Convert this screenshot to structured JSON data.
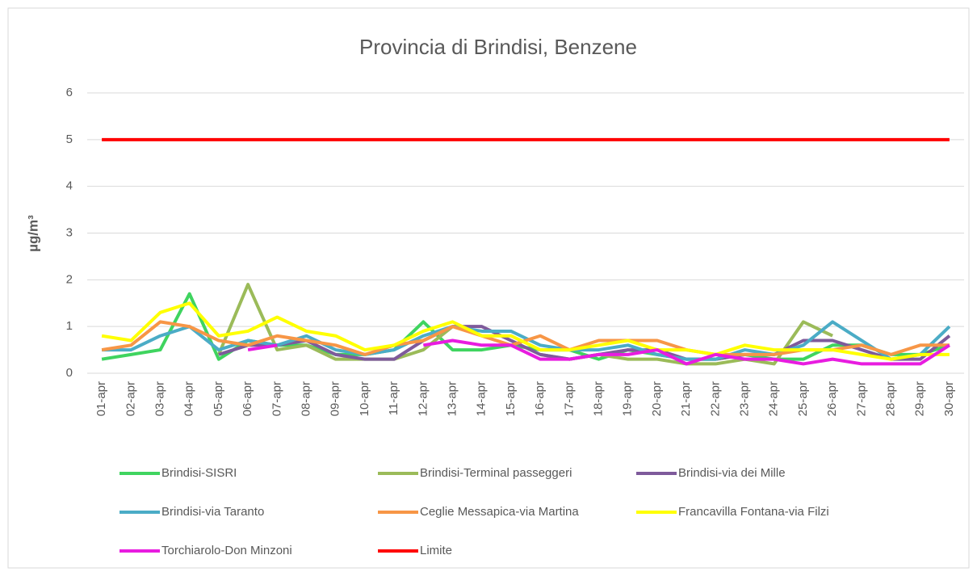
{
  "chart_data": {
    "type": "line",
    "title": "Provincia di Brindisi, Benzene",
    "y_label": "µg/m³",
    "categories": [
      "01-apr",
      "02-apr",
      "03-apr",
      "04-apr",
      "05-apr",
      "06-apr",
      "07-apr",
      "08-apr",
      "09-apr",
      "10-apr",
      "11-apr",
      "12-apr",
      "13-apr",
      "14-apr",
      "15-apr",
      "16-apr",
      "17-apr",
      "18-apr",
      "19-apr",
      "20-apr",
      "21-apr",
      "22-apr",
      "23-apr",
      "24-apr",
      "25-apr",
      "26-apr",
      "27-apr",
      "28-apr",
      "29-apr",
      "30-apr"
    ],
    "series": [
      {
        "name": "Brindisi-SISRI",
        "color": "#3fd45f",
        "values": [
          0.3,
          0.4,
          0.5,
          1.7,
          0.3,
          0.7,
          0.6,
          0.6,
          0.4,
          0.4,
          0.5,
          1.1,
          0.5,
          0.5,
          0.6,
          0.5,
          0.5,
          0.3,
          0.5,
          0.4,
          0.3,
          0.3,
          0.4,
          0.3,
          0.3,
          0.6,
          0.6,
          0.4,
          0.4,
          0.6
        ]
      },
      {
        "name": "Brindisi-Terminal passeggeri",
        "color": "#9bbb59",
        "values": [
          null,
          null,
          null,
          null,
          0.4,
          1.9,
          0.5,
          0.6,
          0.3,
          0.3,
          0.3,
          0.5,
          1.0,
          null,
          null,
          0.4,
          0.3,
          0.4,
          0.3,
          0.3,
          0.2,
          0.2,
          0.3,
          0.2,
          1.1,
          0.8,
          null,
          null,
          null,
          null
        ]
      },
      {
        "name": "Brindisi-via dei Mille",
        "color": "#7e5a9b",
        "values": [
          null,
          null,
          null,
          null,
          0.4,
          0.6,
          0.6,
          0.7,
          0.4,
          0.3,
          0.3,
          0.7,
          1.0,
          1.0,
          0.7,
          0.4,
          0.3,
          0.4,
          0.5,
          0.5,
          0.3,
          0.3,
          0.4,
          0.4,
          0.7,
          0.7,
          0.5,
          0.3,
          0.3,
          0.8
        ]
      },
      {
        "name": "Brindisi-via Taranto",
        "color": "#4bacc6",
        "values": [
          0.5,
          0.5,
          0.8,
          1.0,
          0.5,
          0.7,
          0.6,
          0.8,
          0.5,
          0.4,
          0.5,
          0.8,
          1.0,
          0.9,
          0.9,
          0.6,
          0.5,
          0.5,
          0.6,
          0.4,
          0.3,
          0.3,
          0.5,
          0.4,
          0.6,
          1.1,
          0.7,
          0.3,
          0.4,
          1.0
        ]
      },
      {
        "name": "Ceglie Messapica-via Martina",
        "color": "#f79646",
        "values": [
          0.5,
          0.6,
          1.1,
          1.0,
          0.7,
          0.6,
          0.8,
          0.7,
          0.6,
          0.4,
          0.6,
          0.7,
          1.0,
          0.8,
          0.6,
          0.8,
          0.5,
          0.7,
          0.7,
          0.7,
          0.5,
          0.4,
          0.4,
          0.4,
          0.5,
          0.5,
          0.6,
          0.4,
          0.6,
          0.6
        ]
      },
      {
        "name": "Francavilla Fontana-via Filzi",
        "color": "#ffff00",
        "values": [
          0.8,
          0.7,
          1.3,
          1.5,
          0.8,
          0.9,
          1.2,
          0.9,
          0.8,
          0.5,
          0.6,
          0.9,
          1.1,
          0.8,
          0.8,
          0.5,
          0.5,
          0.6,
          0.7,
          0.5,
          0.5,
          0.4,
          0.6,
          0.5,
          0.5,
          0.5,
          0.4,
          0.3,
          0.4,
          0.4
        ]
      },
      {
        "name": "Torchiarolo-Don Minzoni",
        "color": "#e81ce0",
        "values": [
          null,
          null,
          null,
          null,
          null,
          0.5,
          0.6,
          null,
          null,
          null,
          null,
          0.6,
          0.7,
          0.6,
          0.6,
          0.3,
          0.3,
          0.4,
          0.4,
          0.5,
          0.2,
          0.4,
          0.3,
          0.3,
          0.2,
          0.3,
          0.2,
          0.2,
          0.2,
          0.6
        ]
      },
      {
        "name": "Limite",
        "color": "#ff0000",
        "values": [
          5,
          5,
          5,
          5,
          5,
          5,
          5,
          5,
          5,
          5,
          5,
          5,
          5,
          5,
          5,
          5,
          5,
          5,
          5,
          5,
          5,
          5,
          5,
          5,
          5,
          5,
          5,
          5,
          5,
          5
        ]
      }
    ],
    "ylim": [
      0,
      6
    ],
    "yticks": [
      0,
      1,
      2,
      3,
      4,
      5,
      6
    ],
    "grid": true
  }
}
